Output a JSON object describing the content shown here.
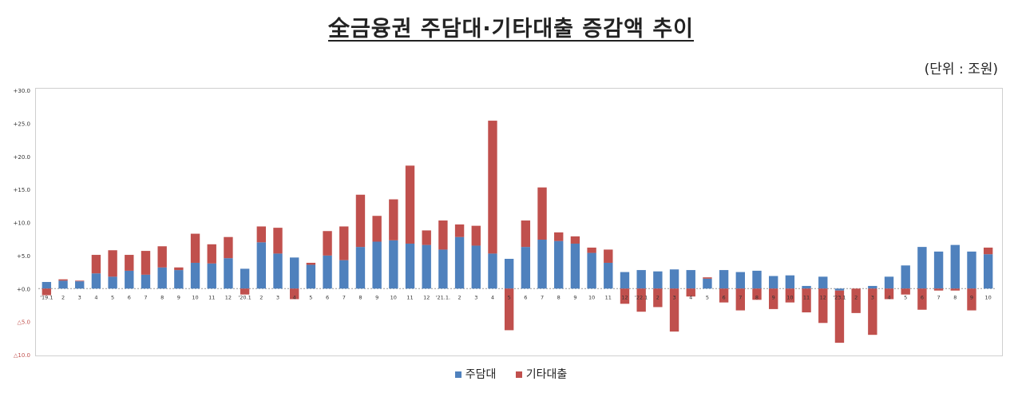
{
  "title": "全금융권 주담대·기타대출 증감액 추이",
  "unit": "(단위 : 조원)",
  "colors": {
    "mortgage": "#4f81bd",
    "other": "#c0504d"
  },
  "chart_data": {
    "type": "bar",
    "stacked": true,
    "ylim": [
      -10,
      30
    ],
    "yticks": [
      {
        "v": 30,
        "label": "+30.0"
      },
      {
        "v": 25,
        "label": "+25.0"
      },
      {
        "v": 20,
        "label": "+20.0"
      },
      {
        "v": 15,
        "label": "+15.0"
      },
      {
        "v": 10,
        "label": "+10.0"
      },
      {
        "v": 5,
        "label": "+5.0"
      },
      {
        "v": 0,
        "label": "+0.0"
      },
      {
        "v": -5,
        "label": "△5.0"
      },
      {
        "v": -10,
        "label": "△10.0"
      }
    ],
    "categories": [
      "'19.1",
      "2",
      "3",
      "4",
      "5",
      "6",
      "7",
      "8",
      "9",
      "10",
      "11",
      "12",
      "'20.1",
      "2",
      "3",
      "4",
      "5",
      "6",
      "7",
      "8",
      "9",
      "10",
      "11",
      "12",
      "'21.1.",
      "2",
      "3",
      "4",
      "5",
      "6",
      "7",
      "8",
      "9",
      "10",
      "11",
      "12",
      "'22.1",
      "2",
      "3",
      "4",
      "5",
      "6",
      "7",
      "8",
      "9",
      "10",
      "11",
      "12",
      "'23.1",
      "2",
      "3",
      "4",
      "5",
      "6",
      "7",
      "8",
      "9",
      "10"
    ],
    "series": [
      {
        "name": "주담대",
        "values": [
          1.0,
          1.2,
          1.1,
          2.3,
          1.8,
          2.7,
          2.1,
          3.2,
          2.8,
          3.9,
          3.8,
          4.6,
          3.0,
          7.0,
          5.3,
          4.7,
          3.6,
          5.0,
          4.3,
          6.3,
          7.1,
          7.3,
          6.8,
          6.6,
          5.9,
          7.8,
          6.5,
          5.3,
          4.5,
          6.3,
          7.4,
          7.2,
          6.8,
          5.4,
          3.9,
          2.5,
          2.8,
          2.6,
          2.9,
          2.8,
          1.5,
          2.8,
          2.5,
          2.7,
          1.9,
          2.0,
          0.4,
          1.8,
          -0.3,
          0.0,
          0.4,
          1.8,
          3.5,
          6.3,
          5.6,
          6.6,
          5.6,
          5.2
        ]
      },
      {
        "name": "기타대출",
        "values": [
          -1.0,
          0.2,
          0.1,
          2.8,
          4.0,
          2.4,
          3.6,
          3.2,
          0.4,
          4.4,
          2.9,
          3.2,
          -0.9,
          2.4,
          3.9,
          -1.6,
          0.3,
          3.7,
          5.1,
          7.9,
          3.9,
          6.2,
          11.8,
          2.2,
          4.4,
          1.9,
          3.0,
          20.1,
          -6.3,
          4.0,
          7.9,
          1.3,
          1.1,
          0.8,
          2.0,
          -2.3,
          -3.5,
          -2.8,
          -6.5,
          -1.2,
          0.2,
          -2.1,
          -3.3,
          -1.7,
          -3.1,
          -2.1,
          -3.6,
          -5.2,
          -7.9,
          -3.7,
          -7.0,
          -1.6,
          -0.9,
          -3.2,
          -0.3,
          -0.3,
          -3.3,
          1.0
        ]
      }
    ]
  },
  "legend": [
    {
      "label": "주담대",
      "color": "#4f81bd"
    },
    {
      "label": "기타대출",
      "color": "#c0504d"
    }
  ]
}
